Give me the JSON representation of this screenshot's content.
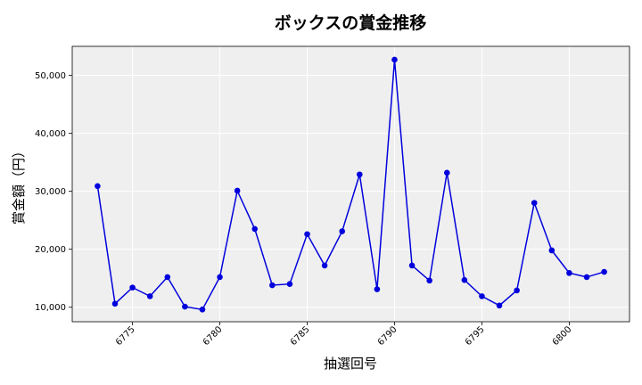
{
  "chart_data": {
    "type": "line",
    "title": "ボックスの賞金推移",
    "xlabel": "抽選回号",
    "ylabel": "賞金額（円）",
    "xlim": [
      6771.55,
      6803.45
    ],
    "ylim": [
      7500,
      55000
    ],
    "x_ticks": [
      6775,
      6780,
      6785,
      6790,
      6795,
      6800
    ],
    "x_tick_labels": [
      "6775",
      "6780",
      "6785",
      "6790",
      "6795",
      "6800"
    ],
    "y_ticks": [
      10000,
      20000,
      30000,
      40000,
      50000
    ],
    "y_tick_labels": [
      "10,000",
      "20,000",
      "30,000",
      "40,000",
      "50,000"
    ],
    "grid": true,
    "line_color": "#0000dd",
    "background_color": "#efefef",
    "series": [
      {
        "x": [
          6773,
          6774,
          6775,
          6776,
          6777,
          6778,
          6779,
          6780,
          6781,
          6782,
          6783,
          6784,
          6785,
          6786,
          6787,
          6788,
          6789,
          6790,
          6791,
          6792,
          6793,
          6794,
          6795,
          6796,
          6797,
          6798,
          6799,
          6800,
          6801,
          6802
        ],
        "values": [
          30900,
          10600,
          13400,
          11900,
          15200,
          10100,
          9600,
          15200,
          30100,
          23500,
          13800,
          14000,
          22600,
          17200,
          23100,
          32900,
          13100,
          52700,
          17200,
          14600,
          33200,
          14700,
          11900,
          10300,
          12900,
          28000,
          19800,
          15900,
          15200,
          16100
        ]
      }
    ]
  }
}
